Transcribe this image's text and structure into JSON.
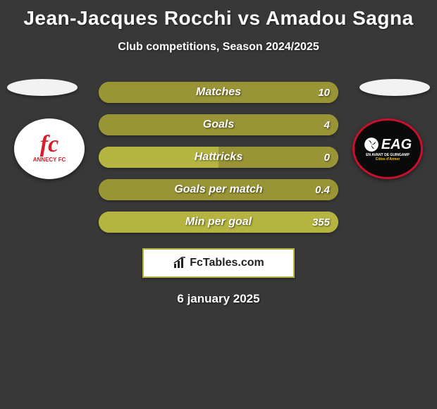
{
  "title": "Jean-Jacques Rocchi vs Amadou Sagna",
  "subtitle": "Club competitions, Season 2024/2025",
  "date": "6 january 2025",
  "footer_brand": "FcTables.com",
  "colors": {
    "background": "#383838",
    "title_text": "#ffffff",
    "bar_left": "#b6b441",
    "bar_right": "#999435",
    "badge_left_bg": "#ffffff",
    "badge_right_bg": "#0a0a0a",
    "pill_left_bg": "#f2f2f2",
    "pill_right_bg": "#f2f2f2",
    "footer_border": "#b6b441",
    "footer_bg": "#ffffff",
    "annecy_red": "#d81e2c",
    "eag_red": "#c8102e",
    "eag_yellow": "#f5c518"
  },
  "stats": [
    {
      "label": "Matches",
      "left_pct": 0,
      "right_pct": 100,
      "right_value": "10"
    },
    {
      "label": "Goals",
      "left_pct": 0,
      "right_pct": 100,
      "right_value": "4"
    },
    {
      "label": "Hattricks",
      "left_pct": 50,
      "right_pct": 50,
      "right_value": "0"
    },
    {
      "label": "Goals per match",
      "left_pct": 0,
      "right_pct": 100,
      "right_value": "0.4"
    },
    {
      "label": "Min per goal",
      "left_pct": 100,
      "right_pct": 0,
      "right_value": "355"
    }
  ],
  "clubs": {
    "left": {
      "name": "ANNECY FC",
      "short": "fc"
    },
    "right": {
      "name": "EAG",
      "sub1": "EN AVANT DE GUINGAMP",
      "sub2": "Côtes d'Armor"
    }
  }
}
